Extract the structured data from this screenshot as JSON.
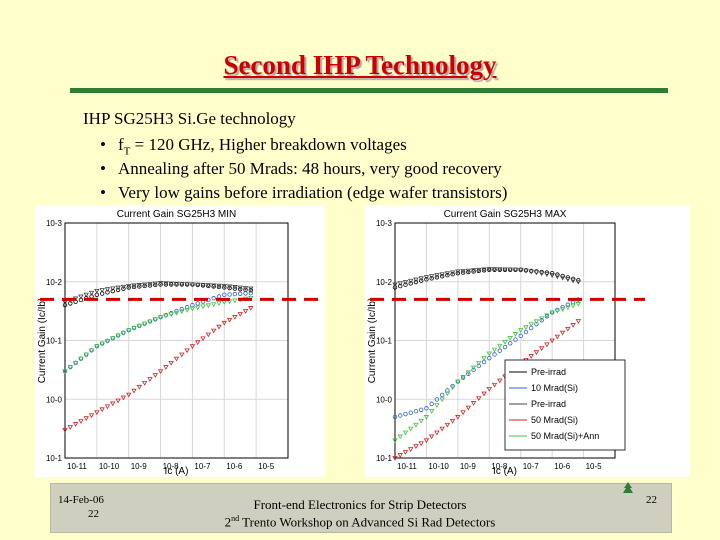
{
  "slide": {
    "title": "Second IHP Technology",
    "intro": "IHP SG25H3 Si.Ge technology",
    "bullets": [
      "fT = 120 GHz, Higher breakdown voltages",
      "Annealing after 50 Mrads: 48 hours, very good recovery",
      "Very low gains before irradiation (edge wafer transistors)"
    ],
    "bullet_glyph": "•",
    "f_main": "f",
    "f_sub": "T",
    "f_rest": " = 120 GHz, Higher breakdown voltages"
  },
  "footer": {
    "date": "14-Feb-06",
    "page_small": "22",
    "line1": "Front-end Electronics for Strip Detectors",
    "line2_sup": "nd",
    "line2_pre": "2",
    "line2_rest": " Trento Workshop on Advanced Si Rad Detectors",
    "page": "22"
  },
  "chart_data": [
    {
      "type": "scatter",
      "title": "Current Gain SG25H3 MIN",
      "xlabel": "Ic (A)",
      "ylabel": "Current Gain (Ic/Ib)",
      "x_scale": "log",
      "y_scale": "log",
      "xlim": [
        1e-11,
        0.0001
      ],
      "ylim": [
        0.1,
        1000
      ],
      "x_tick_labels": [
        "10-11",
        "10-10",
        "10-9",
        "10-8",
        "10-7",
        "10-6",
        "10-5"
      ],
      "y_tick_labels": [
        "10-1",
        "10-0",
        "10-1",
        "10-2",
        "10-3"
      ],
      "reference_line_y": 50,
      "series": [
        {
          "name": "Pre-irrad",
          "color": "#000000",
          "points": [
            [
              1e-11,
              40
            ],
            [
              1e-10,
              60
            ],
            [
              1e-09,
              80
            ],
            [
              1e-08,
              90
            ],
            [
              1e-07,
              90
            ],
            [
              1e-06,
              80
            ],
            [
              1e-05,
              70
            ]
          ]
        },
        {
          "name": "10 Mrad(Si)",
          "color": "#3060d0",
          "points": [
            [
              1e-11,
              3
            ],
            [
              1e-10,
              8
            ],
            [
              1e-09,
              15
            ],
            [
              1e-08,
              25
            ],
            [
              1e-07,
              40
            ],
            [
              1e-06,
              60
            ],
            [
              1e-05,
              65
            ]
          ]
        },
        {
          "name": "Pre-irrad",
          "color": "#404040",
          "points": [
            [
              1e-11,
              45
            ],
            [
              1e-10,
              70
            ],
            [
              1e-09,
              85
            ],
            [
              1e-08,
              95
            ],
            [
              1e-07,
              90
            ],
            [
              1e-06,
              85
            ],
            [
              1e-05,
              75
            ]
          ]
        },
        {
          "name": "50 Mrad(Si)",
          "color": "#d02020",
          "points": [
            [
              1e-11,
              0.3
            ],
            [
              1e-10,
              0.6
            ],
            [
              1e-09,
              1.2
            ],
            [
              1e-08,
              3
            ],
            [
              1e-07,
              8
            ],
            [
              1e-06,
              20
            ],
            [
              1e-05,
              40
            ]
          ]
        },
        {
          "name": "50 Mrad(Si)+Ann",
          "color": "#40c040",
          "points": [
            [
              1e-11,
              3
            ],
            [
              1e-10,
              8
            ],
            [
              1e-09,
              15
            ],
            [
              1e-08,
              25
            ],
            [
              1e-07,
              35
            ],
            [
              1e-06,
              45
            ],
            [
              1e-05,
              55
            ]
          ]
        }
      ],
      "legend": "none"
    },
    {
      "type": "scatter",
      "title": "Current Gain SG25H3 MAX",
      "xlabel": "Ic (A)",
      "ylabel": "Current Gain (Ic/Ib)",
      "x_scale": "log",
      "y_scale": "log",
      "xlim": [
        1e-11,
        0.0001
      ],
      "ylim": [
        0.1,
        1000
      ],
      "x_tick_labels": [
        "10-11",
        "10-10",
        "10-9",
        "10-8",
        "10-7",
        "10-6",
        "10-5"
      ],
      "y_tick_labels": [
        "10-1",
        "10-0",
        "10-1",
        "10-2",
        "10-3"
      ],
      "reference_line_y": 50,
      "series": [
        {
          "name": "Pre-irrad",
          "color": "#000000",
          "points": [
            [
              1e-11,
              80
            ],
            [
              1e-10,
              110
            ],
            [
              1e-09,
              140
            ],
            [
              1e-08,
              160
            ],
            [
              1e-07,
              160
            ],
            [
              1e-06,
              140
            ],
            [
              1e-05,
              100
            ]
          ]
        },
        {
          "name": "10 Mrad(Si)",
          "color": "#3060d0",
          "points": [
            [
              1e-11,
              0.5
            ],
            [
              1e-10,
              0.7
            ],
            [
              1e-09,
              2
            ],
            [
              1e-08,
              5
            ],
            [
              1e-07,
              12
            ],
            [
              1e-06,
              30
            ],
            [
              1e-05,
              55
            ]
          ]
        },
        {
          "name": "Pre-irrad",
          "color": "#404040",
          "points": [
            [
              1e-11,
              90
            ],
            [
              1e-10,
              120
            ],
            [
              1e-09,
              150
            ],
            [
              1e-08,
              165
            ],
            [
              1e-07,
              160
            ],
            [
              1e-06,
              130
            ],
            [
              1e-05,
              95
            ]
          ]
        },
        {
          "name": "50 Mrad(Si)",
          "color": "#d02020",
          "points": [
            [
              1e-11,
              0.1
            ],
            [
              1e-10,
              0.2
            ],
            [
              1e-09,
              0.5
            ],
            [
              1e-08,
              1.5
            ],
            [
              1e-07,
              4
            ],
            [
              1e-06,
              10
            ],
            [
              1e-05,
              25
            ]
          ]
        },
        {
          "name": "50 Mrad(Si)+Ann",
          "color": "#40c040",
          "points": [
            [
              1e-11,
              0.2
            ],
            [
              1e-10,
              0.5
            ],
            [
              1e-09,
              2
            ],
            [
              1e-08,
              6
            ],
            [
              1e-07,
              15
            ],
            [
              1e-06,
              30
            ],
            [
              1e-05,
              45
            ]
          ]
        }
      ],
      "legend": "bottom-right"
    }
  ]
}
